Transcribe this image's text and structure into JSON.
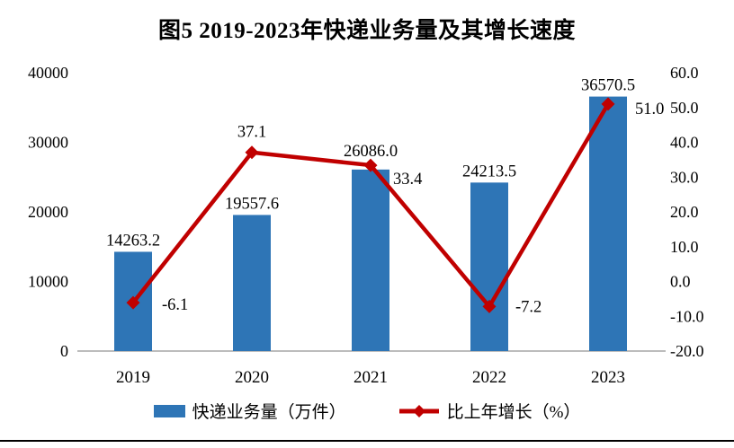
{
  "page": {
    "title": "图5 2019-2023年快递业务量及其增长速度"
  },
  "chart_data": {
    "type": "bar+line combo",
    "title": "图5 2019-2023年快递业务量及其增长速度",
    "categories": [
      "2019",
      "2020",
      "2021",
      "2022",
      "2023"
    ],
    "series": [
      {
        "name": "快递业务量（万件）",
        "type": "bar",
        "axis": "left",
        "values": [
          14263.2,
          19557.6,
          26086.0,
          24213.5,
          36570.5
        ],
        "labels": [
          "14263.2",
          "19557.6",
          "26086.0",
          "24213.5",
          "36570.5"
        ],
        "color": "#2E75B6"
      },
      {
        "name": "比上年增长（%）",
        "type": "line",
        "axis": "right",
        "values": [
          -6.1,
          37.1,
          33.4,
          -7.2,
          51.0
        ],
        "labels": [
          "-6.1",
          "37.1",
          "33.4",
          "-7.2",
          "51.0"
        ],
        "color": "#C00000",
        "marker": "diamond"
      }
    ],
    "left_axis": {
      "min": 0,
      "max": 40000,
      "ticks": [
        "0",
        "10000",
        "20000",
        "30000",
        "40000"
      ]
    },
    "right_axis": {
      "min": -20,
      "max": 60,
      "ticks": [
        "-20.0",
        "-10.0",
        "0.0",
        "10.0",
        "20.0",
        "30.0",
        "40.0",
        "50.0",
        "60.0"
      ]
    },
    "grid": false,
    "legend_position": "bottom",
    "axis_line_color": "#A6A6A6"
  },
  "legend": {
    "bar_label": "快递业务量（万件）",
    "line_label": "比上年增长（%）"
  }
}
